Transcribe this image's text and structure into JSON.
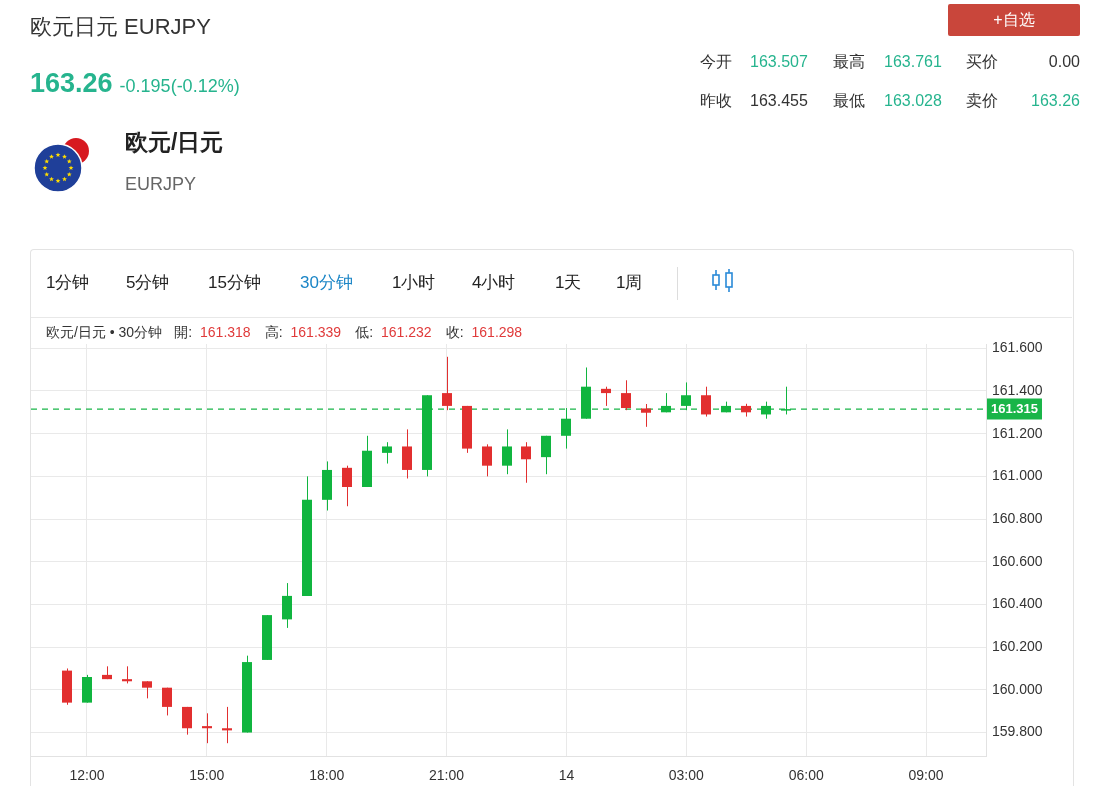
{
  "chart_data": {
    "type": "candlestick",
    "title": "欧元日元 EURJPY",
    "subtitle": "163.26",
    "annotations": [
      "-0.195(-0.12%)",
      "欧元/日元",
      "EURJPY",
      "+自选",
      "今开",
      "163.507",
      "最高",
      "163.761",
      "买价",
      "0.00",
      "昨收",
      "163.455",
      "最低",
      "163.028",
      "卖价",
      "163.26",
      "1分钟",
      "5分钟",
      "15分钟",
      "30分钟",
      "1小时",
      "4小时",
      "1天",
      "1周",
      "欧元/日元 • 30分钟",
      "開:",
      "161.318",
      "高:",
      "161.339",
      "低:",
      "161.232",
      "收:",
      "161.298"
    ],
    "x": [
      "--02-13T11:30",
      "--02-13T12:00",
      "--02-13T12:30",
      "--02-13T13:00",
      "--02-13T13:30",
      "--02-13T14:00",
      "--02-13T14:30",
      "--02-13T15:00",
      "--02-13T15:30",
      "--02-13T16:00",
      "--02-13T16:30",
      "--02-13T17:00",
      "--02-13T17:30",
      "--02-13T18:00",
      "--02-13T18:30",
      "--02-13T19:00",
      "--02-13T19:30",
      "--02-13T20:00",
      "--02-13T20:30",
      "--02-13T21:00",
      "--02-13T21:30",
      "--02-13T22:00",
      "--02-13T22:30",
      "--02-13T23:00",
      "--02-13T23:30",
      "--02-14T00:00",
      "--02-14T00:30",
      "--02-14T01:00",
      "--02-14T01:30",
      "--02-14T02:00",
      "--02-14T02:30",
      "--02-14T03:00",
      "--02-14T03:30",
      "--02-14T04:00",
      "--02-14T04:30",
      "--02-14T05:00",
      "--02-14T05:30"
    ],
    "ohlc": [
      [
        160.09,
        160.1,
        159.93,
        159.94
      ],
      [
        159.94,
        160.07,
        159.94,
        160.06
      ],
      [
        160.07,
        160.11,
        160.05,
        160.05
      ],
      [
        160.05,
        160.11,
        160.03,
        160.04
      ],
      [
        160.04,
        160.04,
        159.96,
        160.01
      ],
      [
        160.01,
        160.01,
        159.88,
        159.92
      ],
      [
        159.92,
        159.92,
        159.79,
        159.82
      ],
      [
        159.83,
        159.89,
        159.75,
        159.82
      ],
      [
        159.82,
        159.92,
        159.75,
        159.81
      ],
      [
        159.8,
        160.16,
        159.8,
        160.13
      ],
      [
        160.14,
        160.35,
        160.14,
        160.35
      ],
      [
        160.33,
        160.5,
        160.29,
        160.44
      ],
      [
        160.44,
        161.0,
        160.44,
        160.89
      ],
      [
        160.89,
        161.07,
        160.84,
        161.03
      ],
      [
        161.04,
        161.05,
        160.86,
        160.95
      ],
      [
        160.95,
        161.19,
        160.95,
        161.12
      ],
      [
        161.11,
        161.16,
        161.06,
        161.14
      ],
      [
        161.14,
        161.22,
        160.99,
        161.03
      ],
      [
        161.03,
        161.38,
        161.0,
        161.38
      ],
      [
        161.39,
        161.56,
        161.31,
        161.33
      ],
      [
        161.33,
        161.33,
        161.11,
        161.13
      ],
      [
        161.14,
        161.15,
        161.0,
        161.05
      ],
      [
        161.05,
        161.22,
        161.01,
        161.14
      ],
      [
        161.14,
        161.16,
        160.97,
        161.08
      ],
      [
        161.09,
        161.19,
        161.01,
        161.19
      ],
      [
        161.19,
        161.32,
        161.13,
        161.27
      ],
      [
        161.27,
        161.51,
        161.27,
        161.42
      ],
      [
        161.41,
        161.42,
        161.33,
        161.39
      ],
      [
        161.39,
        161.45,
        161.31,
        161.32
      ],
      [
        161.318,
        161.339,
        161.232,
        161.298
      ],
      [
        161.3,
        161.39,
        161.3,
        161.33
      ],
      [
        161.33,
        161.44,
        161.31,
        161.38
      ],
      [
        161.38,
        161.42,
        161.28,
        161.29
      ],
      [
        161.3,
        161.35,
        161.3,
        161.33
      ],
      [
        161.33,
        161.34,
        161.28,
        161.3
      ],
      [
        161.29,
        161.35,
        161.27,
        161.33
      ],
      [
        161.31,
        161.42,
        161.29,
        161.315
      ]
    ],
    "colors": [
      "#e22f2f",
      "#10b53f",
      "#e22f2f",
      "#e22f2f",
      "#e22f2f",
      "#e22f2f",
      "#e22f2f",
      "#e22f2f",
      "#e22f2f",
      "#10b53f",
      "#10b53f",
      "#10b53f",
      "#10b53f",
      "#10b53f",
      "#e22f2f",
      "#10b53f",
      "#10b53f",
      "#e22f2f",
      "#10b53f",
      "#e22f2f",
      "#e22f2f",
      "#e22f2f",
      "#10b53f",
      "#e22f2f",
      "#10b53f",
      "#10b53f",
      "#10b53f",
      "#e22f2f",
      "#e22f2f",
      "#e22f2f",
      "#10b53f",
      "#10b53f",
      "#e22f2f",
      "#10b53f",
      "#e22f2f",
      "#10b53f",
      "#10b53f"
    ],
    "xlim": [
      "--02-13T10:36",
      "--02-14T10:30"
    ],
    "xticks": [
      {
        "value": "--02-13T12:00",
        "label": "12:00"
      },
      {
        "value": "--02-13T15:00",
        "label": "15:00"
      },
      {
        "value": "--02-13T18:00",
        "label": "18:00"
      },
      {
        "value": "--02-13T21:00",
        "label": "21:00"
      },
      {
        "value": "--02-14T00:00",
        "label": "14"
      },
      {
        "value": "--02-14T03:00",
        "label": "03:00"
      },
      {
        "value": "--02-14T06:00",
        "label": "06:00"
      },
      {
        "value": "--02-14T09:00",
        "label": "09:00"
      }
    ],
    "ylim": [
      159.69,
      161.62
    ],
    "yticks": [
      {
        "value": 159.8,
        "label": "159.800"
      },
      {
        "value": 160,
        "label": "160.000"
      },
      {
        "value": 160.2,
        "label": "160.200"
      },
      {
        "value": 160.4,
        "label": "160.400"
      },
      {
        "value": 160.6,
        "label": "160.600"
      },
      {
        "value": 160.8,
        "label": "160.800"
      },
      {
        "value": 161,
        "label": "161.000"
      },
      {
        "value": 161.2,
        "label": "161.200"
      },
      {
        "value": 161.4,
        "label": "161.400"
      },
      {
        "value": 161.6,
        "label": "161.600"
      }
    ],
    "grid": true,
    "ref_lines": [
      {
        "axis": "y",
        "value": 161.315,
        "label": "161.315",
        "color": "#19b548",
        "line_style": "dashed"
      }
    ]
  }
}
